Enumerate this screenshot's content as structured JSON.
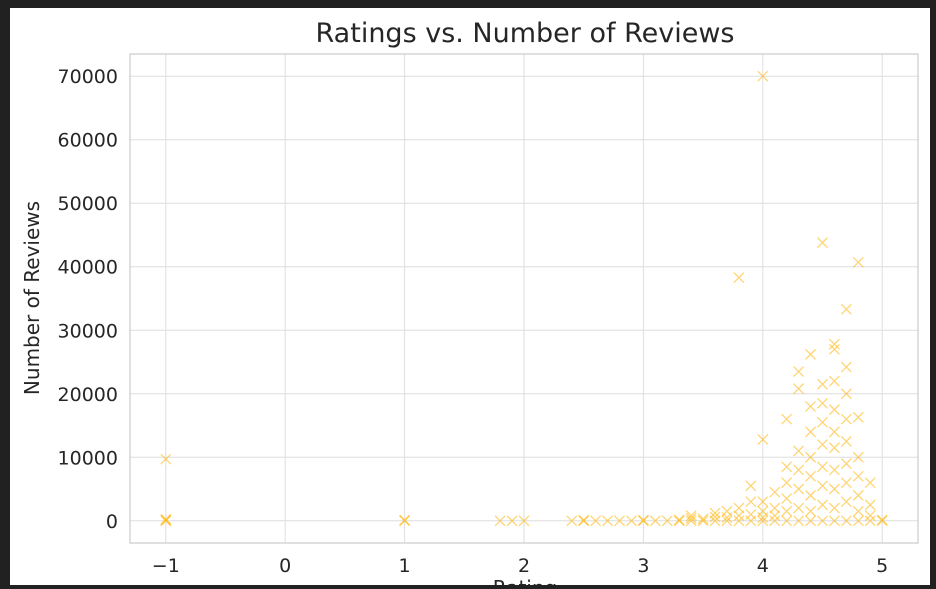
{
  "chart_data": {
    "type": "scatter",
    "title": "Ratings vs. Number of Reviews",
    "xlabel": "Rating",
    "ylabel": "Number of Reviews",
    "xlim": [
      -1.3,
      5.3
    ],
    "ylim": [
      -3500,
      73500
    ],
    "xticks": [
      -1,
      0,
      1,
      2,
      3,
      4,
      5
    ],
    "xtick_labels": [
      "−1",
      "0",
      "1",
      "2",
      "3",
      "4",
      "5"
    ],
    "yticks": [
      0,
      10000,
      20000,
      30000,
      40000,
      50000,
      60000,
      70000
    ],
    "ytick_labels": [
      "0",
      "10000",
      "20000",
      "30000",
      "40000",
      "50000",
      "60000",
      "70000"
    ],
    "grid": true,
    "marker": "x",
    "marker_color": "#ffb300",
    "series": [
      {
        "points": [
          [
            -1,
            9700
          ],
          [
            -1,
            0
          ],
          [
            -1,
            80
          ],
          [
            -1,
            250
          ],
          [
            1,
            0
          ],
          [
            1,
            100
          ],
          [
            1.8,
            0
          ],
          [
            1.9,
            0
          ],
          [
            2.0,
            0
          ],
          [
            2.4,
            0
          ],
          [
            2.5,
            0
          ],
          [
            2.5,
            100
          ],
          [
            2.6,
            0
          ],
          [
            2.7,
            0
          ],
          [
            2.8,
            0
          ],
          [
            2.9,
            0
          ],
          [
            3.0,
            0
          ],
          [
            3.0,
            100
          ],
          [
            3.1,
            0
          ],
          [
            3.2,
            0
          ],
          [
            3.3,
            0
          ],
          [
            3.3,
            150
          ],
          [
            3.4,
            0
          ],
          [
            3.4,
            400
          ],
          [
            3.4,
            800
          ],
          [
            3.5,
            0
          ],
          [
            3.5,
            300
          ],
          [
            3.6,
            0
          ],
          [
            3.6,
            600
          ],
          [
            3.6,
            1200
          ],
          [
            3.7,
            0
          ],
          [
            3.7,
            500
          ],
          [
            3.7,
            1500
          ],
          [
            3.8,
            0
          ],
          [
            3.8,
            800
          ],
          [
            3.8,
            2000
          ],
          [
            3.8,
            38300
          ],
          [
            3.9,
            0
          ],
          [
            3.9,
            1000
          ],
          [
            3.9,
            3000
          ],
          [
            3.9,
            5500
          ],
          [
            4.0,
            0
          ],
          [
            4.0,
            500
          ],
          [
            4.0,
            1500
          ],
          [
            4.0,
            3000
          ],
          [
            4.0,
            12800
          ],
          [
            4.0,
            70000
          ],
          [
            4.1,
            0
          ],
          [
            4.1,
            800
          ],
          [
            4.1,
            2000
          ],
          [
            4.1,
            4500
          ],
          [
            4.2,
            0
          ],
          [
            4.2,
            1500
          ],
          [
            4.2,
            3500
          ],
          [
            4.2,
            6000
          ],
          [
            4.2,
            8500
          ],
          [
            4.2,
            16000
          ],
          [
            4.3,
            0
          ],
          [
            4.3,
            2000
          ],
          [
            4.3,
            5000
          ],
          [
            4.3,
            8000
          ],
          [
            4.3,
            11000
          ],
          [
            4.3,
            20800
          ],
          [
            4.3,
            23500
          ],
          [
            4.4,
            0
          ],
          [
            4.4,
            1500
          ],
          [
            4.4,
            4000
          ],
          [
            4.4,
            7000
          ],
          [
            4.4,
            10000
          ],
          [
            4.4,
            14000
          ],
          [
            4.4,
            18000
          ],
          [
            4.4,
            26200
          ],
          [
            4.5,
            0
          ],
          [
            4.5,
            2500
          ],
          [
            4.5,
            5500
          ],
          [
            4.5,
            8500
          ],
          [
            4.5,
            12000
          ],
          [
            4.5,
            15500
          ],
          [
            4.5,
            18500
          ],
          [
            4.5,
            21500
          ],
          [
            4.5,
            43800
          ],
          [
            4.6,
            0
          ],
          [
            4.6,
            2000
          ],
          [
            4.6,
            5000
          ],
          [
            4.6,
            8000
          ],
          [
            4.6,
            11500
          ],
          [
            4.6,
            14000
          ],
          [
            4.6,
            17500
          ],
          [
            4.6,
            22000
          ],
          [
            4.6,
            27000
          ],
          [
            4.6,
            27800
          ],
          [
            4.7,
            0
          ],
          [
            4.7,
            3000
          ],
          [
            4.7,
            6000
          ],
          [
            4.7,
            9000
          ],
          [
            4.7,
            12500
          ],
          [
            4.7,
            16000
          ],
          [
            4.7,
            20000
          ],
          [
            4.7,
            24200
          ],
          [
            4.7,
            33300
          ],
          [
            4.8,
            0
          ],
          [
            4.8,
            1500
          ],
          [
            4.8,
            4000
          ],
          [
            4.8,
            7000
          ],
          [
            4.8,
            10000
          ],
          [
            4.8,
            16300
          ],
          [
            4.8,
            40700
          ],
          [
            4.9,
            0
          ],
          [
            4.9,
            800
          ],
          [
            4.9,
            2500
          ],
          [
            4.9,
            6000
          ],
          [
            5.0,
            0
          ],
          [
            5.0,
            150
          ]
        ]
      }
    ]
  }
}
